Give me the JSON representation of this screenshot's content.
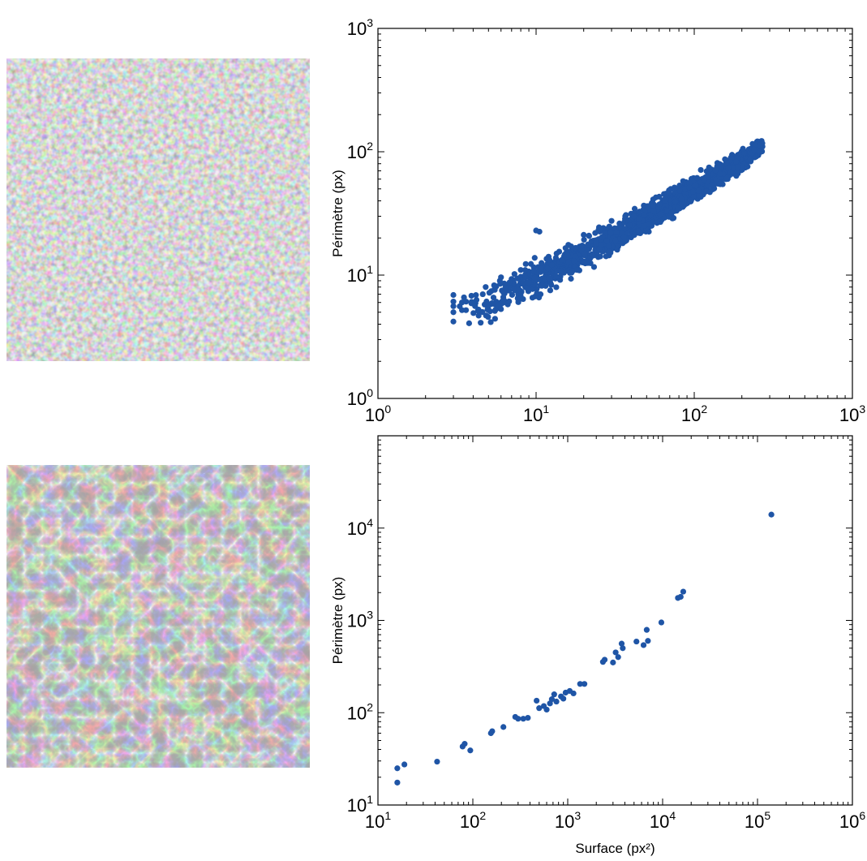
{
  "micrographs": [
    {
      "name": "porous-texture",
      "description_free": true
    },
    {
      "name": "cracked-texture",
      "description_free": true
    }
  ],
  "colors": {
    "points": "#1f55a6",
    "axes": "#000000"
  },
  "chart_data": [
    {
      "type": "scatter",
      "title": "",
      "xlabel": "",
      "ylabel": "Périmètre (px)",
      "xscale": "log",
      "yscale": "log",
      "xlim": [
        1,
        1000
      ],
      "ylim": [
        1,
        1000
      ],
      "xticks": [
        {
          "base": "10",
          "exp": "0"
        },
        {
          "base": "10",
          "exp": "1"
        },
        {
          "base": "10",
          "exp": "2"
        },
        {
          "base": "10",
          "exp": "3"
        }
      ],
      "yticks": [
        {
          "base": "10",
          "exp": "0"
        },
        {
          "base": "10",
          "exp": "1"
        },
        {
          "base": "10",
          "exp": "2"
        },
        {
          "base": "10",
          "exp": "3"
        }
      ],
      "grid": false,
      "trend": {
        "x_range": [
          3,
          270
        ],
        "y_at_x_min": 4.2,
        "y_at_x_max": 110,
        "y_spread_low_x": 3.0,
        "y_spread_high_x": 1.8
      },
      "points": [
        [
          3,
          4.2
        ],
        [
          3,
          5.0
        ],
        [
          3,
          5.6
        ],
        [
          3,
          6.1
        ],
        [
          3,
          6.9
        ],
        [
          3.4,
          5.2
        ],
        [
          3.4,
          6.0
        ],
        [
          3.5,
          6.6
        ],
        [
          3.9,
          5.9
        ],
        [
          3.9,
          6.8
        ],
        [
          4.2,
          6.3
        ],
        [
          4.6,
          7.0
        ],
        [
          4.8,
          8.0
        ],
        [
          5.2,
          7.4
        ],
        [
          5.6,
          8.1
        ],
        [
          5.9,
          9.0
        ],
        [
          6.0,
          9.6
        ],
        [
          6.5,
          8.3
        ],
        [
          7.0,
          9.3
        ],
        [
          7.3,
          10.2
        ],
        [
          8.0,
          11.0
        ],
        [
          8.0,
          9.7
        ],
        [
          8.6,
          12.3
        ],
        [
          9.0,
          10.7
        ],
        [
          9.8,
          13.8
        ],
        [
          10.0,
          23.0
        ],
        [
          10.5,
          22.5
        ],
        [
          11,
          11.8
        ],
        [
          12,
          14.1
        ],
        [
          13,
          12.7
        ],
        [
          14,
          15.5
        ],
        [
          15,
          13.3
        ],
        [
          16,
          17.6
        ],
        [
          17,
          14.4
        ],
        [
          18,
          16.0
        ],
        [
          20,
          21.2
        ],
        [
          21,
          17.1
        ],
        [
          23,
          19.0
        ],
        [
          25,
          24.4
        ],
        [
          26,
          20.2
        ],
        [
          28,
          22.1
        ],
        [
          30,
          27.5
        ],
        [
          33,
          24.0
        ],
        [
          35,
          25.9
        ],
        [
          37,
          30.7
        ],
        [
          40,
          28.2
        ],
        [
          42,
          34.5
        ],
        [
          45,
          30.1
        ],
        [
          48,
          36.6
        ],
        [
          51,
          32.5
        ],
        [
          55,
          41.1
        ],
        [
          58,
          35.8
        ],
        [
          62,
          38.2
        ],
        [
          66,
          45.7
        ],
        [
          70,
          42.2
        ],
        [
          75,
          51.3
        ],
        [
          80,
          46.4
        ],
        [
          85,
          57.8
        ],
        [
          90,
          50.2
        ],
        [
          96,
          60.3
        ],
        [
          102,
          55.3
        ],
        [
          110,
          71.2
        ],
        [
          116,
          61.0
        ],
        [
          124,
          74.6
        ],
        [
          132,
          66.2
        ],
        [
          140,
          81.1
        ],
        [
          150,
          72.3
        ],
        [
          160,
          85.0
        ],
        [
          172,
          77.6
        ],
        [
          185,
          90.4
        ],
        [
          200,
          85.5
        ],
        [
          215,
          95.7
        ],
        [
          235,
          92.0
        ],
        [
          260,
          100.2
        ],
        [
          270,
          110
        ]
      ]
    },
    {
      "type": "scatter",
      "title": "",
      "xlabel": "Surface (px²)",
      "ylabel": "Périmètre (px)",
      "xscale": "log",
      "yscale": "log",
      "xlim": [
        10,
        1000000
      ],
      "ylim": [
        10,
        100000
      ],
      "xticks": [
        {
          "base": "10",
          "exp": "1"
        },
        {
          "base": "10",
          "exp": "2"
        },
        {
          "base": "10",
          "exp": "3"
        },
        {
          "base": "10",
          "exp": "4"
        },
        {
          "base": "10",
          "exp": "5"
        },
        {
          "base": "10",
          "exp": "6"
        }
      ],
      "yticks": [
        {
          "base": "10",
          "exp": "1"
        },
        {
          "base": "10",
          "exp": "2"
        },
        {
          "base": "10",
          "exp": "3"
        },
        {
          "base": "10",
          "exp": "4"
        }
      ],
      "grid": false,
      "points": [
        [
          16,
          17.5
        ],
        [
          16,
          25
        ],
        [
          19,
          27.5
        ],
        [
          42,
          29.5
        ],
        [
          78,
          43
        ],
        [
          82,
          46
        ],
        [
          94,
          39
        ],
        [
          155,
          60
        ],
        [
          160,
          63
        ],
        [
          210,
          70
        ],
        [
          280,
          90
        ],
        [
          300,
          86
        ],
        [
          340,
          86
        ],
        [
          380,
          88
        ],
        [
          470,
          135
        ],
        [
          500,
          112
        ],
        [
          560,
          118
        ],
        [
          600,
          108
        ],
        [
          650,
          126
        ],
        [
          680,
          140
        ],
        [
          720,
          158
        ],
        [
          760,
          132
        ],
        [
          850,
          150
        ],
        [
          900,
          142
        ],
        [
          950,
          165
        ],
        [
          1050,
          172
        ],
        [
          1150,
          162
        ],
        [
          1350,
          205
        ],
        [
          1500,
          205
        ],
        [
          2350,
          355
        ],
        [
          2450,
          375
        ],
        [
          3000,
          350
        ],
        [
          3200,
          450
        ],
        [
          3400,
          400
        ],
        [
          3700,
          560
        ],
        [
          3800,
          500
        ],
        [
          5300,
          590
        ],
        [
          6300,
          540
        ],
        [
          6800,
          790
        ],
        [
          7000,
          600
        ],
        [
          9700,
          950
        ],
        [
          14500,
          1750
        ],
        [
          15500,
          1800
        ],
        [
          16500,
          2050
        ],
        [
          140000,
          14000
        ]
      ]
    }
  ]
}
